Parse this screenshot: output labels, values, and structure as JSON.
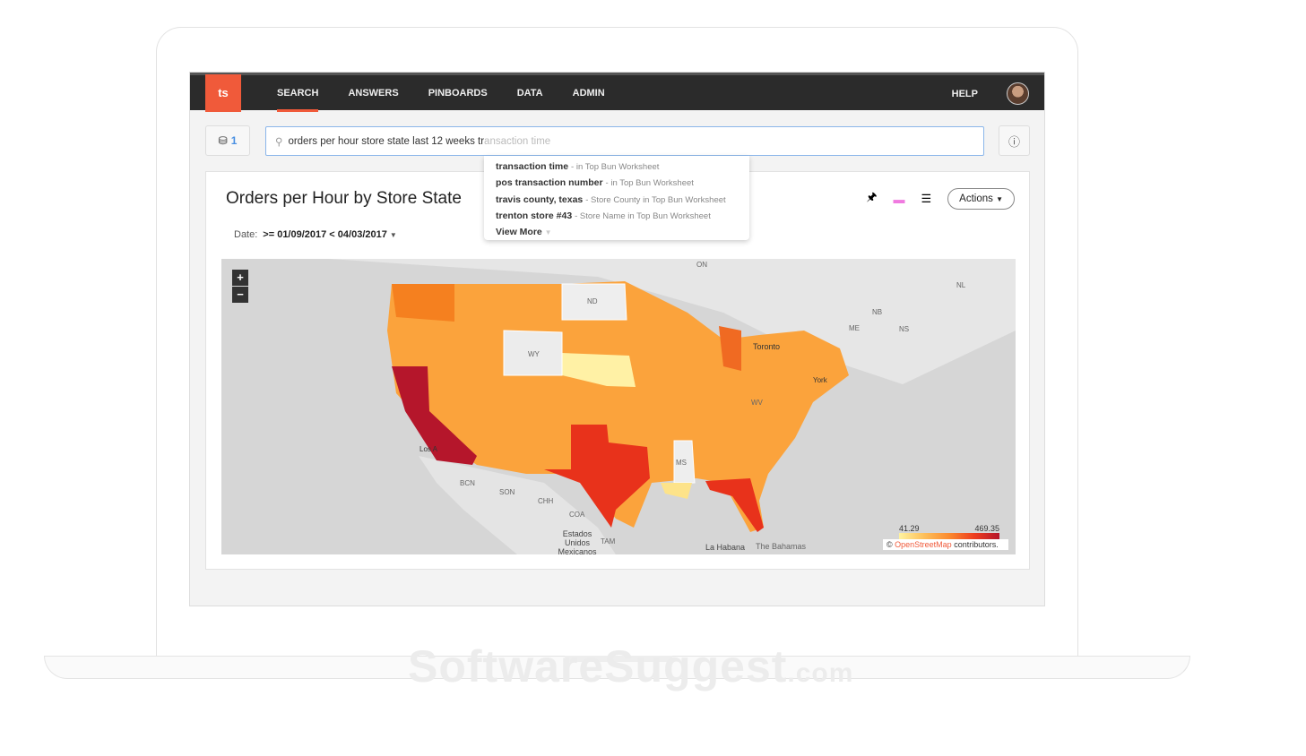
{
  "nav": {
    "logo": "ts",
    "items": [
      "SEARCH",
      "ANSWERS",
      "PINBOARDS",
      "DATA",
      "ADMIN"
    ],
    "active": "SEARCH",
    "help": "HELP"
  },
  "sources": {
    "count": "1"
  },
  "search": {
    "typed": "orders per hour store state last 12 weeks tr",
    "completion": "ansaction time"
  },
  "suggestions": [
    {
      "term": "transaction time",
      "detail": "- in Top Bun Worksheet"
    },
    {
      "term": "pos transaction number",
      "detail": "- in Top Bun Worksheet"
    },
    {
      "term": "travis county, texas",
      "detail": "- Store County in Top Bun Worksheet"
    },
    {
      "term": "trenton store #43",
      "detail": "- Store Name in Top Bun Worksheet"
    }
  ],
  "view_more": "View More",
  "answer": {
    "title": "Orders per Hour by Store State",
    "date_label": "Date:",
    "date_value": ">= 01/09/2017 < 04/03/2017",
    "actions": "Actions"
  },
  "map": {
    "legend_min": "41.29",
    "legend_max": "469.35",
    "attribution_prefix": "©",
    "attribution_link": "OpenStreetMap",
    "attribution_suffix": "contributors.",
    "labels": [
      "ON",
      "ND",
      "WY",
      "NB",
      "ME",
      "NS",
      "NL",
      "Toronto",
      "WV",
      "MS",
      "Los A",
      "BCN",
      "SON",
      "CHH",
      "COA",
      "Estados Unidos Mexicanos",
      "TAM",
      "The Bahamas",
      "La Habana",
      "York"
    ],
    "colors": {
      "low": "#fff3a0",
      "high": "#b5162b",
      "accent": "#f05a3a"
    }
  },
  "watermark": "SoftwareSuggest",
  "watermark_suffix": ".com"
}
